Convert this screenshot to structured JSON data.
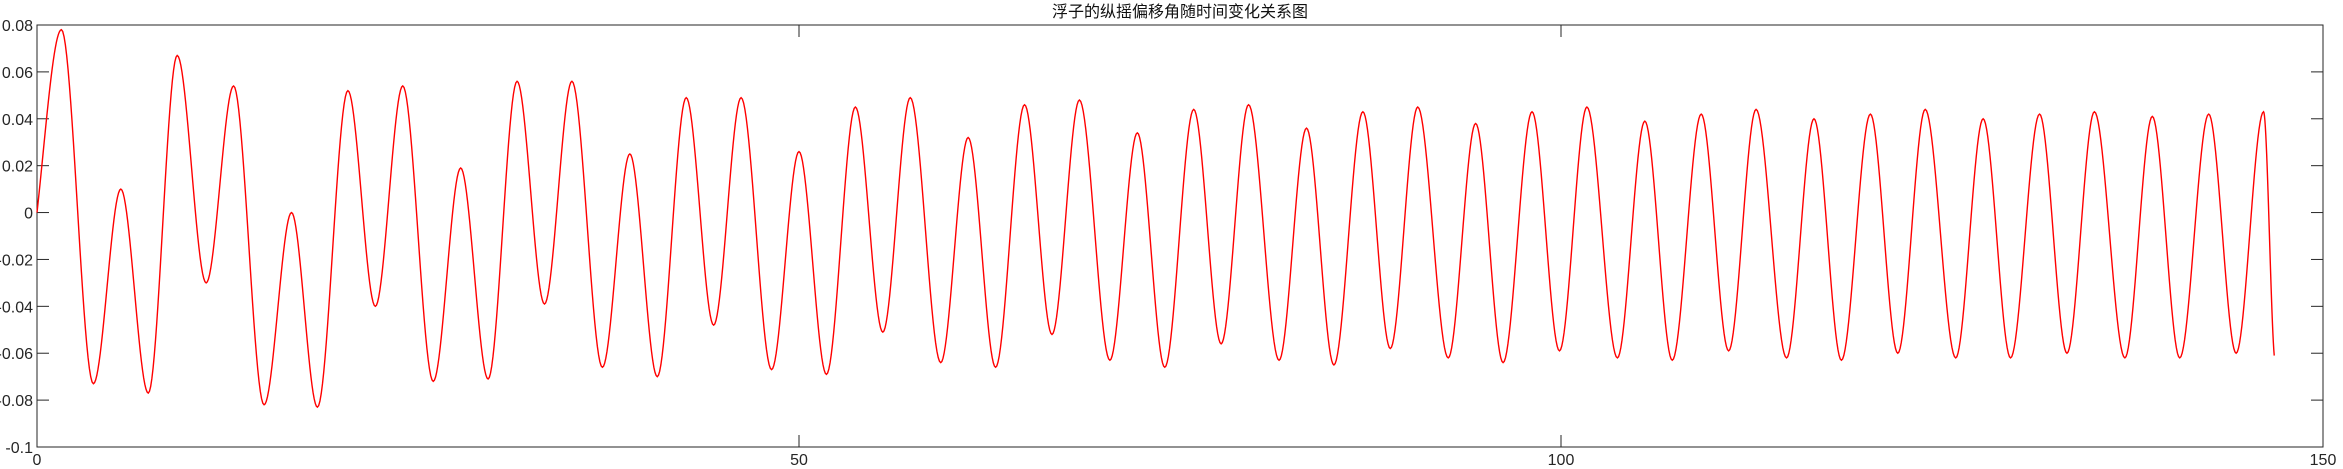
{
  "chart_data": {
    "type": "line",
    "title": "浮子的纵摇偏移角随时间变化关系图",
    "xlabel": "",
    "ylabel": "",
    "xlim": [
      0,
      150
    ],
    "ylim": [
      -0.1,
      0.08
    ],
    "xticks": [
      0,
      50,
      100,
      150
    ],
    "xtick_labels": [
      "0",
      "50",
      "100",
      "150"
    ],
    "yticks": [
      -0.1,
      -0.08,
      -0.06,
      -0.04,
      -0.02,
      0,
      0.02,
      0.04,
      0.06,
      0.08
    ],
    "ytick_labels": [
      "-0.1",
      "-0.08",
      "-0.06",
      "-0.04",
      "-0.02",
      "0",
      "0.02",
      "0.04",
      "0.06",
      "0.08"
    ],
    "grid": false,
    "series": [
      {
        "color": "#ff0000",
        "x": [
          0,
          1.6,
          3.7,
          5.5,
          7.3,
          9.2,
          11.1,
          12.9,
          14.9,
          16.7,
          18.4,
          20.4,
          22.2,
          24.0,
          26.0,
          27.8,
          29.6,
          31.5,
          33.3,
          35.1,
          37.1,
          38.9,
          40.7,
          42.6,
          44.4,
          46.2,
          48.2,
          50.0,
          51.8,
          53.7,
          55.5,
          57.3,
          59.3,
          61.1,
          62.9,
          64.8,
          66.6,
          68.4,
          70.4,
          72.2,
          74.0,
          75.9,
          77.7,
          79.5,
          81.5,
          83.3,
          85.1,
          87.0,
          88.8,
          90.6,
          92.6,
          94.4,
          96.2,
          98.1,
          99.9,
          101.7,
          103.7,
          105.5,
          107.3,
          109.2,
          111.0,
          112.8,
          114.8,
          116.6,
          118.4,
          120.3,
          122.1,
          123.9,
          125.9,
          127.7,
          129.5,
          131.4,
          133.2,
          135.0,
          137.0,
          138.8,
          140.6,
          142.5,
          144.3,
          146.1,
          146.8
        ],
        "y": [
          0,
          0.078,
          -0.073,
          0.01,
          -0.077,
          0.067,
          -0.03,
          0.054,
          -0.082,
          0,
          -0.083,
          0.052,
          -0.04,
          0.054,
          -0.072,
          0.019,
          -0.071,
          0.056,
          -0.039,
          0.056,
          -0.066,
          0.025,
          -0.07,
          0.049,
          -0.048,
          0.049,
          -0.067,
          0.026,
          -0.069,
          0.045,
          -0.051,
          0.049,
          -0.064,
          0.032,
          -0.066,
          0.046,
          -0.052,
          0.048,
          -0.063,
          0.034,
          -0.066,
          0.044,
          -0.056,
          0.046,
          -0.063,
          0.036,
          -0.065,
          0.043,
          -0.058,
          0.045,
          -0.062,
          0.038,
          -0.064,
          0.043,
          -0.059,
          0.045,
          -0.062,
          0.039,
          -0.063,
          0.042,
          -0.059,
          0.044,
          -0.062,
          0.04,
          -0.063,
          0.042,
          -0.06,
          0.044,
          -0.062,
          0.04,
          -0.062,
          0.042,
          -0.06,
          0.043,
          -0.062,
          0.041,
          -0.062,
          0.042,
          -0.06,
          0.043,
          -0.061
        ]
      }
    ]
  }
}
